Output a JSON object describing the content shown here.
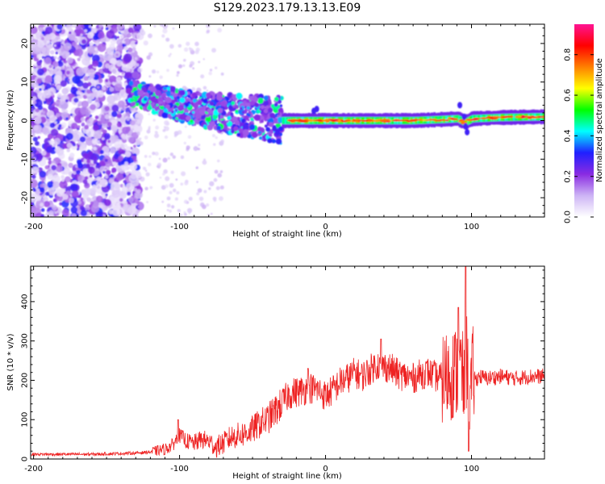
{
  "figure": {
    "title": "S129.2023.179.13.13.E09"
  },
  "chart_data": [
    {
      "type": "heatmap",
      "title": "S129.2023.179.13.13.E09",
      "xlabel": "Height of straight line (km)",
      "ylabel": "Frequency (Hz)",
      "xlim": [
        -202,
        150
      ],
      "ylim": [
        -25,
        25
      ],
      "xticks": [
        -200,
        -100,
        0,
        100
      ],
      "yticks": [
        -20,
        -10,
        0,
        10,
        20
      ],
      "colorbar": {
        "label": "Normalized spectral amplitude",
        "range": [
          0,
          0.95
        ],
        "ticks": [
          "0.0",
          "0.2",
          "0.4",
          "0.6",
          "0.8"
        ],
        "tick_values": [
          0,
          0.2,
          0.4,
          0.6,
          0.8
        ],
        "colormap": [
          "#ffffff",
          "#cdb4f5",
          "#8a2be2",
          "#2020ff",
          "#00ffff",
          "#00ff00",
          "#ffff00",
          "#ff8000",
          "#ff0000",
          "#ff1493"
        ]
      },
      "band_center_hz": [
        [
          -130,
          7
        ],
        [
          -120,
          6
        ],
        [
          -110,
          5
        ],
        [
          -100,
          4
        ],
        [
          -90,
          3
        ],
        [
          -80,
          2.5
        ],
        [
          -70,
          2
        ],
        [
          -60,
          1.5
        ],
        [
          -50,
          1
        ],
        [
          -40,
          0.5
        ],
        [
          -30,
          0
        ],
        [
          -20,
          0
        ],
        [
          -10,
          0
        ],
        [
          0,
          0
        ],
        [
          20,
          0
        ],
        [
          40,
          0
        ],
        [
          60,
          0
        ],
        [
          80,
          0.3
        ],
        [
          90,
          0.5
        ],
        [
          95,
          -0.5
        ],
        [
          100,
          0.5
        ],
        [
          120,
          0.8
        ],
        [
          150,
          1
        ]
      ]
    },
    {
      "type": "line",
      "title": "",
      "xlabel": "Height of straight line (km)",
      "ylabel": "SNR (10 * v/v)",
      "xlim": [
        -202,
        150
      ],
      "ylim": [
        0,
        490
      ],
      "xticks": [
        -200,
        -100,
        0,
        100
      ],
      "yticks": [
        0,
        100,
        200,
        300,
        400
      ],
      "color": "#ee2222",
      "series": [
        {
          "x": [
            -202,
            -190,
            -180,
            -170,
            -160,
            -150,
            -140,
            -130,
            -120,
            -110,
            -105,
            -100,
            -95,
            -90,
            -85,
            -80,
            -75,
            -70,
            -65,
            -60,
            -55,
            -50,
            -45,
            -40,
            -35,
            -30,
            -25,
            -20,
            -15,
            -10,
            -5,
            0,
            5,
            10,
            15,
            20,
            25,
            30,
            35,
            40,
            45,
            50,
            55,
            60,
            65,
            70,
            75,
            80,
            85,
            90,
            93,
            95,
            97,
            99,
            101,
            103,
            105,
            110,
            120,
            130,
            140,
            150
          ],
          "y": [
            12,
            12,
            12,
            12,
            12,
            13,
            14,
            15,
            18,
            25,
            35,
            60,
            45,
            40,
            50,
            45,
            30,
            40,
            55,
            60,
            65,
            75,
            90,
            100,
            120,
            140,
            165,
            170,
            175,
            180,
            175,
            160,
            175,
            195,
            205,
            220,
            210,
            225,
            240,
            235,
            230,
            215,
            210,
            205,
            215,
            220,
            210,
            205,
            215,
            220,
            230,
            180,
            260,
            150,
            220,
            200,
            210,
            205,
            210,
            205,
            210,
            210
          ]
        }
      ],
      "peaks": [
        {
          "x": -101,
          "y": 100
        },
        {
          "x": -12,
          "y": 230
        },
        {
          "x": 38,
          "y": 305
        },
        {
          "x": 91,
          "y": 385
        },
        {
          "x": 96,
          "y": 490
        },
        {
          "x": 98,
          "y": 20
        }
      ]
    }
  ]
}
